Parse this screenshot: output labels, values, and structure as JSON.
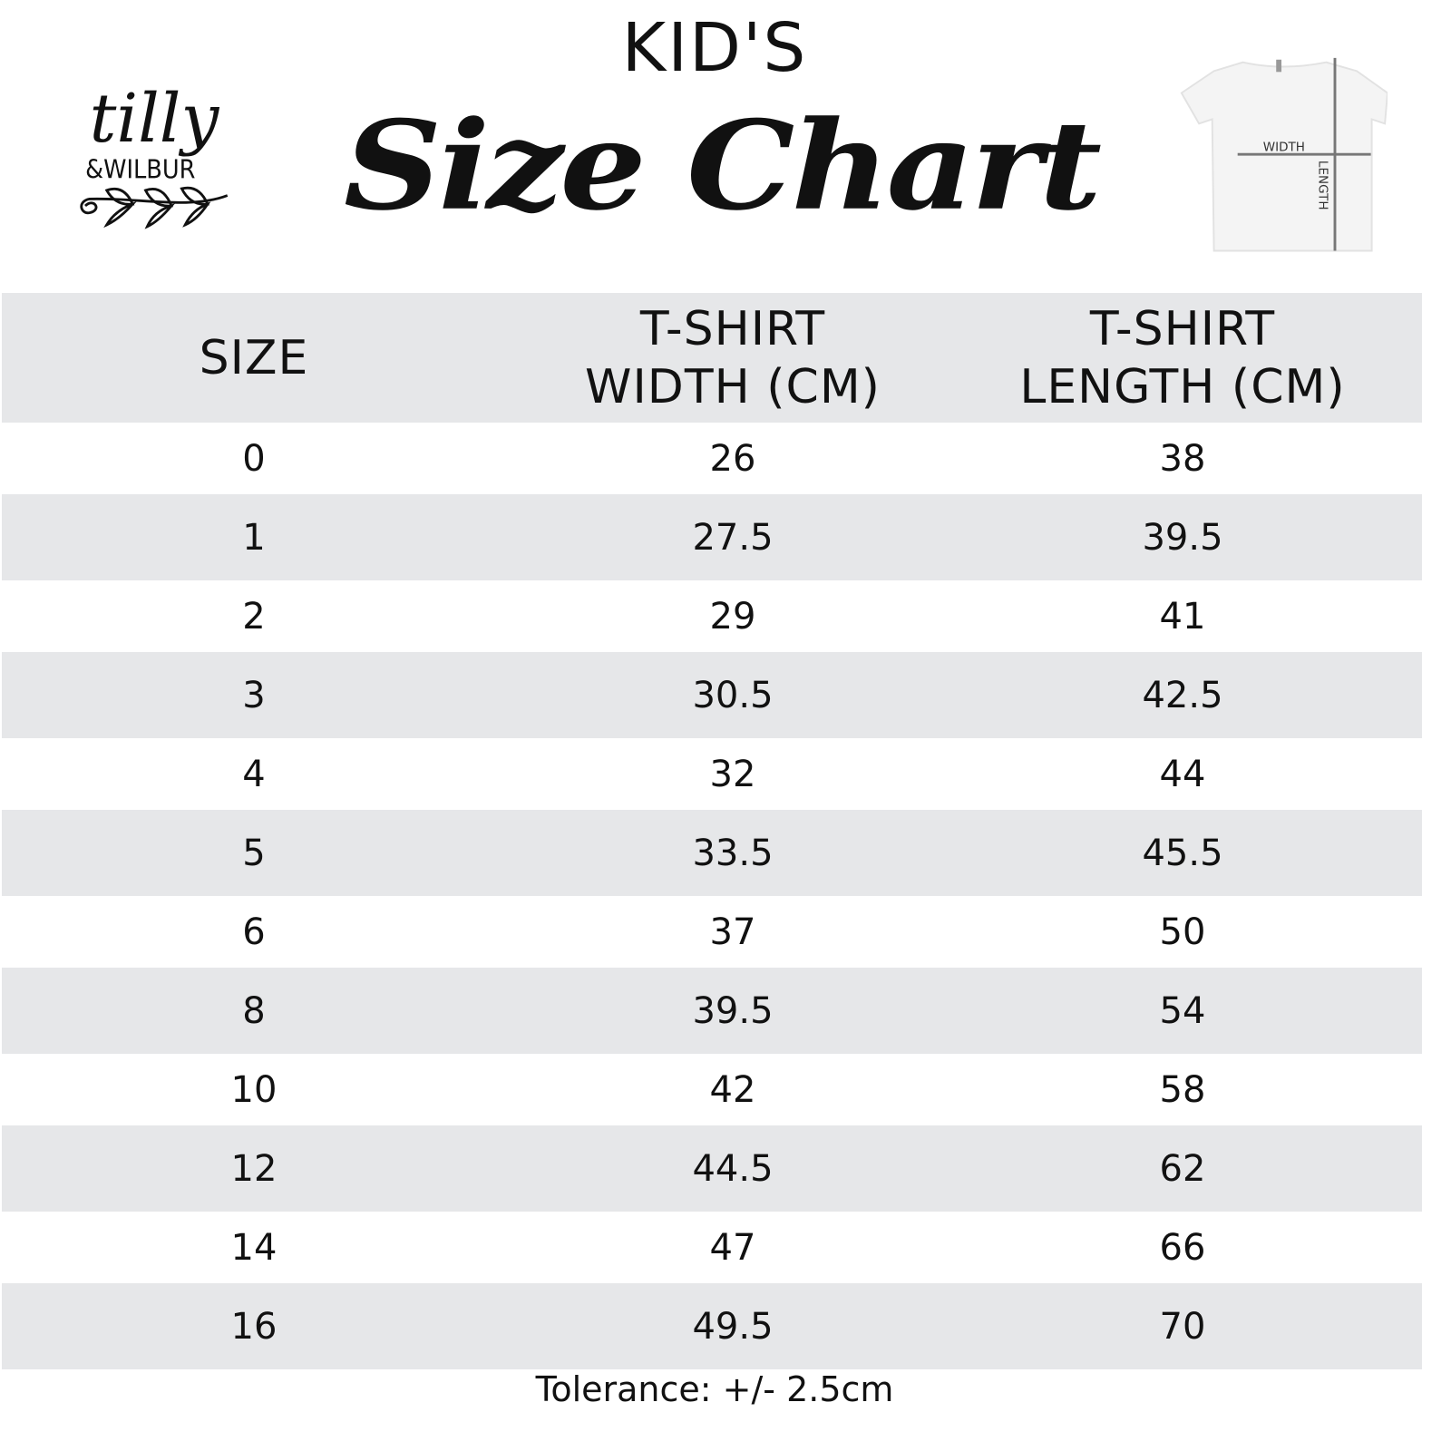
{
  "header": {
    "subtitle": "KID'S",
    "title": "Size Chart",
    "logo_text": "tilly & WILBUR",
    "diagram_labels": {
      "width": "WIDTH",
      "length": "LENGTH"
    }
  },
  "table": {
    "columns": [
      {
        "line1": "SIZE",
        "line2": ""
      },
      {
        "line1": "T-SHIRT",
        "line2": "WIDTH (CM)"
      },
      {
        "line1": "T-SHIRT",
        "line2": "LENGTH (CM)"
      }
    ],
    "rows": [
      [
        "0",
        "26",
        "38"
      ],
      [
        "1",
        "27.5",
        "39.5"
      ],
      [
        "2",
        "29",
        "41"
      ],
      [
        "3",
        "30.5",
        "42.5"
      ],
      [
        "4",
        "32",
        "44"
      ],
      [
        "5",
        "33.5",
        "45.5"
      ],
      [
        "6",
        "37",
        "50"
      ],
      [
        "8",
        "39.5",
        "54"
      ],
      [
        "10",
        "42",
        "58"
      ],
      [
        "12",
        "44.5",
        "62"
      ],
      [
        "14",
        "47",
        "66"
      ],
      [
        "16",
        "49.5",
        "70"
      ]
    ]
  },
  "footer": {
    "tolerance": "Tolerance: +/- 2.5cm"
  },
  "colors": {
    "row_gray": "#e6e7e9",
    "text": "#111111"
  }
}
